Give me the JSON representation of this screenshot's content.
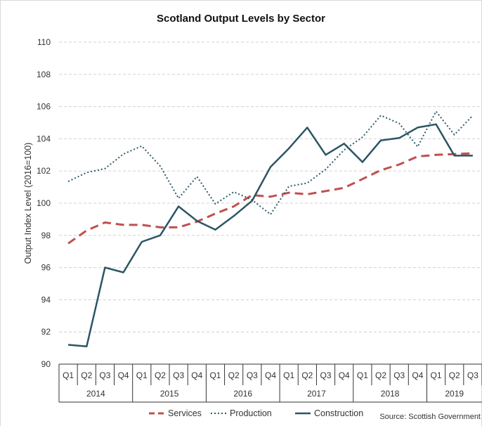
{
  "chart_data": {
    "type": "line",
    "title": "Scotland Output Levels by Sector",
    "ylabel": "Output Index Level (2016=100)",
    "xlabel": "",
    "ylim": [
      90,
      110
    ],
    "yticks": [
      "90",
      "92",
      "94",
      "96",
      "98",
      "100",
      "102",
      "104",
      "106",
      "108",
      "110"
    ],
    "grid": "horizontal dashed",
    "legend_position": "bottom",
    "categories": [
      "Q1",
      "Q2",
      "Q3",
      "Q4",
      "Q1",
      "Q2",
      "Q3",
      "Q4",
      "Q1",
      "Q2",
      "Q3",
      "Q4",
      "Q1",
      "Q2",
      "Q3",
      "Q4",
      "Q1",
      "Q2",
      "Q3",
      "Q4",
      "Q1",
      "Q2",
      "Q3"
    ],
    "years": [
      "2014",
      "2015",
      "2016",
      "2017",
      "2018",
      "2019"
    ],
    "series": [
      {
        "name": "Services",
        "color": "#c0504d",
        "style": "dashed",
        "values": [
          97.5,
          98.3,
          98.8,
          98.65,
          98.65,
          98.5,
          98.5,
          98.85,
          99.35,
          99.8,
          100.5,
          100.4,
          100.65,
          100.55,
          100.75,
          100.95,
          101.5,
          102.05,
          102.4,
          102.9,
          103.0,
          103.05,
          103.1
        ]
      },
      {
        "name": "Production",
        "color": "#2e5a6b",
        "style": "dotted",
        "values": [
          101.35,
          101.9,
          102.15,
          103.05,
          103.55,
          102.3,
          100.3,
          101.65,
          99.95,
          100.7,
          100.2,
          99.3,
          101.05,
          101.25,
          102.1,
          103.3,
          104.1,
          105.45,
          104.95,
          103.5,
          105.7,
          104.25,
          105.45
        ]
      },
      {
        "name": "Construction",
        "color": "#2b5566",
        "style": "solid",
        "values": [
          91.2,
          91.1,
          96.0,
          95.7,
          97.6,
          98.0,
          99.8,
          98.9,
          98.35,
          99.2,
          100.15,
          102.25,
          103.4,
          104.7,
          103.0,
          103.7,
          102.55,
          103.9,
          104.05,
          104.7,
          104.9,
          102.95,
          102.95
        ]
      }
    ]
  },
  "source": "Source: Scottish Government"
}
